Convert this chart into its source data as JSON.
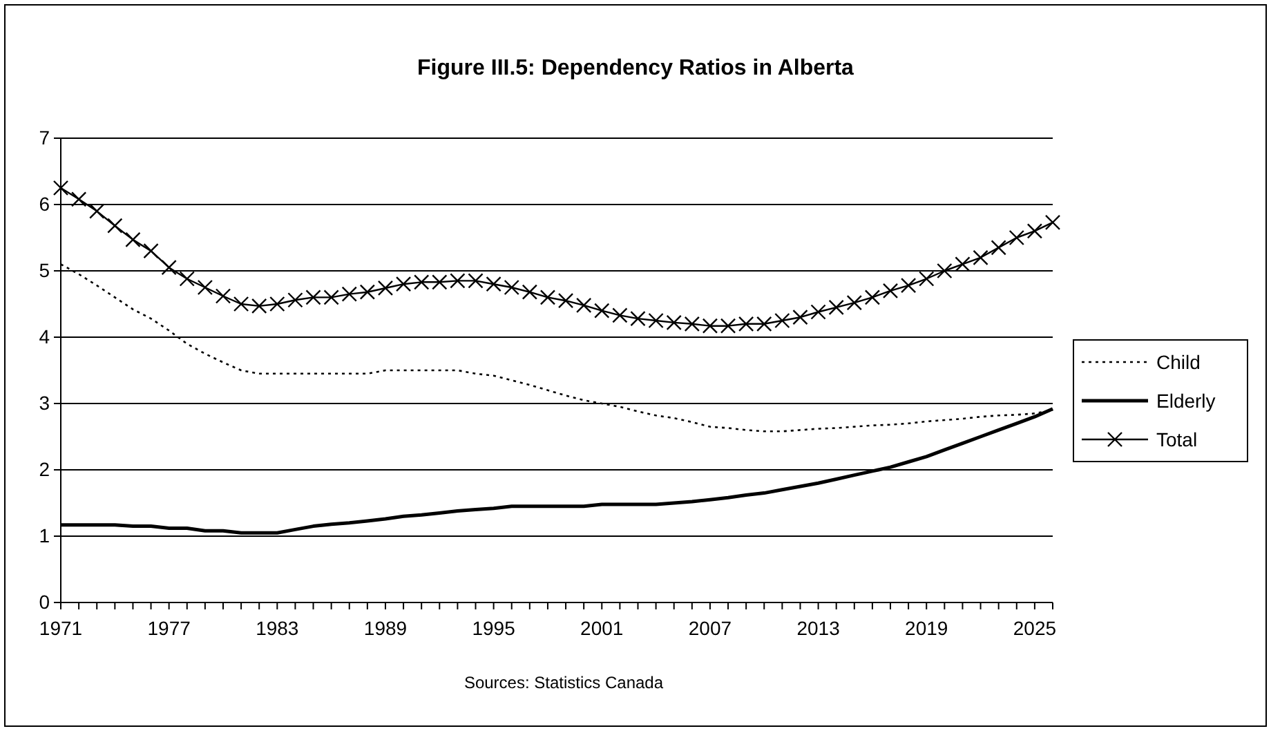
{
  "chart_data": {
    "type": "line",
    "title": "Figure III.5: Dependency Ratios in Alberta",
    "annotations": [
      "Sources: Statistics Canada"
    ],
    "x": [
      1971,
      1972,
      1973,
      1974,
      1975,
      1976,
      1977,
      1978,
      1979,
      1980,
      1981,
      1982,
      1983,
      1984,
      1985,
      1986,
      1987,
      1988,
      1989,
      1990,
      1991,
      1992,
      1993,
      1994,
      1995,
      1996,
      1997,
      1998,
      1999,
      2000,
      2001,
      2002,
      2003,
      2004,
      2005,
      2006,
      2007,
      2008,
      2009,
      2010,
      2011,
      2012,
      2013,
      2014,
      2015,
      2016,
      2017,
      2018,
      2019,
      2020,
      2021,
      2022,
      2023,
      2024,
      2025,
      2026
    ],
    "series": [
      {
        "name": "Child",
        "color": "#000000",
        "line_style": "dotted",
        "marker": "none",
        "values": [
          5.1,
          4.95,
          4.78,
          4.6,
          4.42,
          4.28,
          4.1,
          3.9,
          3.75,
          3.62,
          3.5,
          3.45,
          3.45,
          3.45,
          3.45,
          3.45,
          3.45,
          3.45,
          3.5,
          3.5,
          3.5,
          3.5,
          3.5,
          3.45,
          3.42,
          3.35,
          3.28,
          3.2,
          3.12,
          3.05,
          3.0,
          2.95,
          2.88,
          2.82,
          2.78,
          2.72,
          2.65,
          2.63,
          2.6,
          2.58,
          2.58,
          2.6,
          2.62,
          2.63,
          2.65,
          2.67,
          2.68,
          2.7,
          2.73,
          2.75,
          2.77,
          2.8,
          2.82,
          2.83,
          2.85,
          2.9
        ]
      },
      {
        "name": "Elderly",
        "color": "#000000",
        "line_style": "solid",
        "marker": "none",
        "values": [
          1.17,
          1.17,
          1.17,
          1.17,
          1.15,
          1.15,
          1.12,
          1.12,
          1.08,
          1.08,
          1.05,
          1.05,
          1.05,
          1.1,
          1.15,
          1.18,
          1.2,
          1.23,
          1.26,
          1.3,
          1.32,
          1.35,
          1.38,
          1.4,
          1.42,
          1.45,
          1.45,
          1.45,
          1.45,
          1.45,
          1.48,
          1.48,
          1.48,
          1.48,
          1.5,
          1.52,
          1.55,
          1.58,
          1.62,
          1.65,
          1.7,
          1.75,
          1.8,
          1.86,
          1.92,
          1.98,
          2.04,
          2.12,
          2.2,
          2.3,
          2.4,
          2.5,
          2.6,
          2.7,
          2.8,
          2.92
        ]
      },
      {
        "name": "Total",
        "color": "#000000",
        "line_style": "solid",
        "marker": "cross",
        "values": [
          6.25,
          6.08,
          5.9,
          5.68,
          5.47,
          5.3,
          5.05,
          4.88,
          4.75,
          4.62,
          4.5,
          4.47,
          4.5,
          4.56,
          4.6,
          4.6,
          4.65,
          4.68,
          4.74,
          4.8,
          4.83,
          4.83,
          4.85,
          4.85,
          4.8,
          4.75,
          4.68,
          4.6,
          4.55,
          4.48,
          4.4,
          4.33,
          4.28,
          4.25,
          4.22,
          4.2,
          4.17,
          4.17,
          4.2,
          4.2,
          4.25,
          4.3,
          4.38,
          4.45,
          4.52,
          4.6,
          4.7,
          4.78,
          4.88,
          5.0,
          5.1,
          5.2,
          5.35,
          5.5,
          5.6,
          5.73
        ]
      }
    ],
    "xlim": [
      1971,
      2026
    ],
    "xticks": [
      1971,
      {
        "value": 1972,
        "label": null
      },
      {
        "value": 1973,
        "label": null
      },
      {
        "value": 1974,
        "label": null
      },
      {
        "value": 1975,
        "label": null
      },
      {
        "value": 1976,
        "label": null
      },
      1977,
      {
        "value": 1978,
        "label": null
      },
      {
        "value": 1979,
        "label": null
      },
      {
        "value": 1980,
        "label": null
      },
      {
        "value": 1981,
        "label": null
      },
      {
        "value": 1982,
        "label": null
      },
      1983,
      {
        "value": 1984,
        "label": null
      },
      {
        "value": 1985,
        "label": null
      },
      {
        "value": 1986,
        "label": null
      },
      {
        "value": 1987,
        "label": null
      },
      {
        "value": 1988,
        "label": null
      },
      1989,
      {
        "value": 1990,
        "label": null
      },
      {
        "value": 1991,
        "label": null
      },
      {
        "value": 1992,
        "label": null
      },
      {
        "value": 1993,
        "label": null
      },
      {
        "value": 1994,
        "label": null
      },
      1995,
      {
        "value": 1996,
        "label": null
      },
      {
        "value": 1997,
        "label": null
      },
      {
        "value": 1998,
        "label": null
      },
      {
        "value": 1999,
        "label": null
      },
      {
        "value": 2000,
        "label": null
      },
      2001,
      {
        "value": 2002,
        "label": null
      },
      {
        "value": 2003,
        "label": null
      },
      {
        "value": 2004,
        "label": null
      },
      {
        "value": 2005,
        "label": null
      },
      {
        "value": 2006,
        "label": null
      },
      2007,
      {
        "value": 2008,
        "label": null
      },
      {
        "value": 2009,
        "label": null
      },
      {
        "value": 2010,
        "label": null
      },
      {
        "value": 2011,
        "label": null
      },
      {
        "value": 2012,
        "label": null
      },
      2013,
      {
        "value": 2014,
        "label": null
      },
      {
        "value": 2015,
        "label": null
      },
      {
        "value": 2016,
        "label": null
      },
      {
        "value": 2017,
        "label": null
      },
      {
        "value": 2018,
        "label": null
      },
      2019,
      {
        "value": 2020,
        "label": null
      },
      {
        "value": 2021,
        "label": null
      },
      {
        "value": 2022,
        "label": null
      },
      {
        "value": 2023,
        "label": null
      },
      {
        "value": 2024,
        "label": null
      },
      2025,
      {
        "value": 2026,
        "label": null
      }
    ],
    "ylim": [
      0,
      7
    ],
    "yticks": [
      0,
      1,
      2,
      3,
      4,
      5,
      6,
      7
    ],
    "grid": "y",
    "legend": "right"
  }
}
